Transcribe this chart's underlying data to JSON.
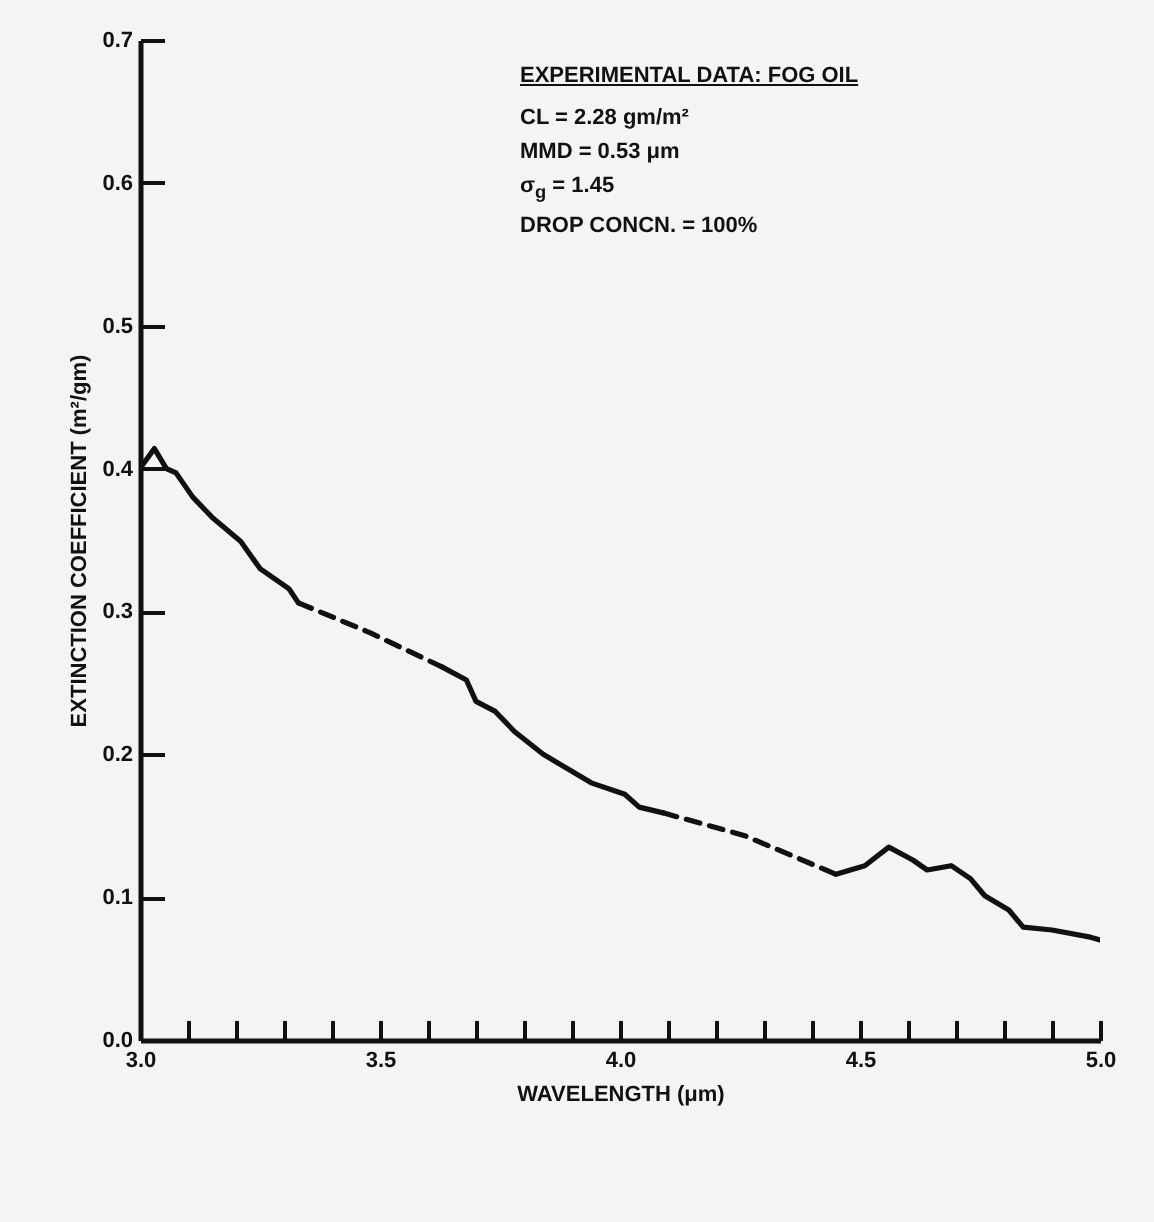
{
  "chart_data": {
    "type": "line",
    "xlabel": "WAVELENGTH (μm)",
    "ylabel": "EXTINCTION COEFFICIENT (m²/gm)",
    "annotations": [
      "EXPERIMENTAL DATA: FOG OIL",
      "CL = 2.28 gm/m²",
      "MMD = 0.53 μm",
      "σ$_{g}$ = 1.45",
      "DROP CONCN. = 100%"
    ],
    "xlim": [
      3.0,
      5.0
    ],
    "ylim": [
      0,
      0.7
    ],
    "xticks": [
      {
        "value": 3.0,
        "label": "3.0"
      },
      {
        "value": 3.1,
        "label": null
      },
      {
        "value": 3.2,
        "label": null
      },
      {
        "value": 3.3,
        "label": null
      },
      {
        "value": 3.4,
        "label": null
      },
      3.5,
      {
        "value": 3.6,
        "label": null
      },
      {
        "value": 3.7,
        "label": null
      },
      {
        "value": 3.8,
        "label": null
      },
      {
        "value": 3.9,
        "label": null
      },
      {
        "value": 4.0,
        "label": "4.0"
      },
      {
        "value": 4.1,
        "label": null
      },
      {
        "value": 4.2,
        "label": null
      },
      {
        "value": 4.3,
        "label": null
      },
      {
        "value": 4.4,
        "label": null
      },
      4.5,
      {
        "value": 4.6,
        "label": null
      },
      {
        "value": 4.7,
        "label": null
      },
      {
        "value": 4.8,
        "label": null
      },
      {
        "value": 4.9,
        "label": null
      },
      {
        "value": 5.0,
        "label": "5.0"
      }
    ],
    "yticks": [
      {
        "value": 0,
        "label": "0.0"
      },
      0.1,
      0.2,
      0.3,
      0.4,
      0.5,
      0.6,
      0.7
    ],
    "marker": "none",
    "series": [
      {
        "color": "#111111",
        "line_style": "solid",
        "x": [
          3.0,
          3.03,
          3.055,
          3.075,
          3.11,
          3.15,
          3.21,
          3.25,
          3.31,
          3.33
        ],
        "values": [
          0.4,
          0.414,
          0.4,
          0.397,
          0.38,
          0.366,
          0.349,
          0.33,
          0.316,
          0.306
        ]
      },
      {
        "color": "#111111",
        "line_style": "dashed",
        "x": [
          3.33,
          3.48,
          3.63
        ],
        "values": [
          0.306,
          0.285,
          0.261
        ]
      },
      {
        "color": "#111111",
        "line_style": "solid",
        "x": [
          3.63,
          3.68,
          3.7,
          3.74,
          3.78,
          3.84,
          3.89,
          3.94,
          4.01,
          4.04,
          4.09
        ],
        "values": [
          0.261,
          0.252,
          0.237,
          0.23,
          0.216,
          0.2,
          0.19,
          0.18,
          0.172,
          0.163,
          0.159
        ]
      },
      {
        "color": "#111111",
        "line_style": "dashed",
        "x": [
          4.09,
          4.26,
          4.45
        ],
        "values": [
          0.159,
          0.143,
          0.116
        ]
      },
      {
        "color": "#111111",
        "line_style": "solid",
        "x": [
          4.45,
          4.51,
          4.56,
          4.61,
          4.64,
          4.69,
          4.73,
          4.76,
          4.81,
          4.84,
          4.9,
          4.98,
          5.0
        ],
        "values": [
          0.116,
          0.122,
          0.135,
          0.126,
          0.119,
          0.122,
          0.113,
          0.101,
          0.091,
          0.079,
          0.077,
          0.072,
          0.07
        ]
      }
    ]
  }
}
